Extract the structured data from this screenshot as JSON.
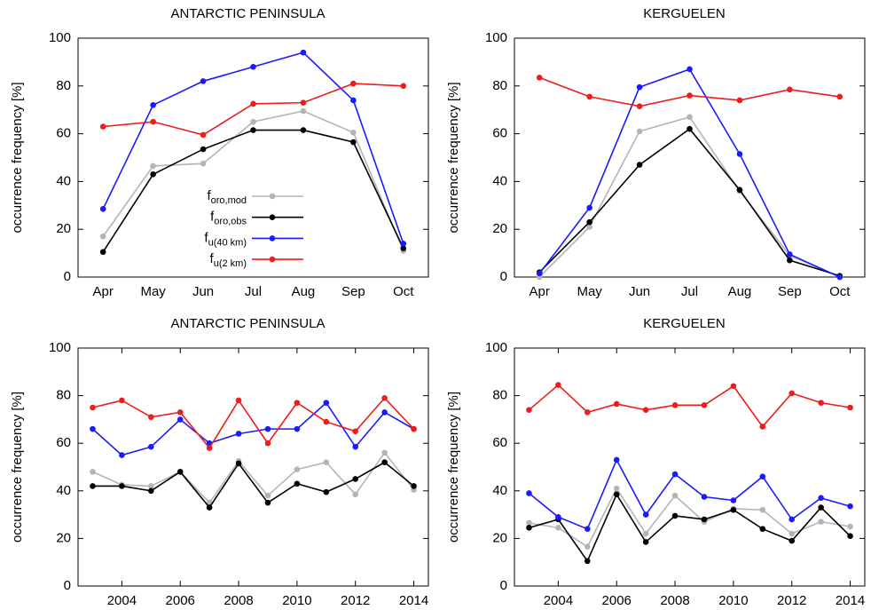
{
  "chart_data": [
    {
      "type": "line",
      "title": "ANTARCTIC PENINSULA",
      "ylabel": "occurrence frequency [%]",
      "categories": [
        "Apr",
        "May",
        "Jun",
        "Jul",
        "Aug",
        "Sep",
        "Oct"
      ],
      "ylim": [
        0,
        100
      ],
      "yticks": [
        0,
        20,
        40,
        60,
        80,
        100
      ],
      "legend": "center",
      "series": [
        {
          "name": "f",
          "subscript": "oro,mod",
          "color": "#b4b4b4",
          "values": [
            17,
            46.5,
            47.5,
            65,
            69.5,
            60.5,
            11
          ]
        },
        {
          "name": "f",
          "subscript": "oro,obs",
          "color": "#000000",
          "values": [
            10.5,
            43,
            53.5,
            61.5,
            61.5,
            56.5,
            12
          ]
        },
        {
          "name": "f",
          "subscript": "u(40 km)",
          "color": "#1a1aff",
          "values": [
            28.5,
            72,
            82,
            88,
            94,
            74,
            14
          ]
        },
        {
          "name": "f",
          "subscript": "u(2 km)",
          "color": "#ee1c1c",
          "values": [
            63,
            65,
            59.5,
            72.5,
            73,
            81,
            80
          ]
        }
      ]
    },
    {
      "type": "line",
      "title": "KERGUELEN",
      "ylabel": "occurrence frequency [%]",
      "categories": [
        "Apr",
        "May",
        "Jun",
        "Jul",
        "Aug",
        "Sep",
        "Oct"
      ],
      "ylim": [
        0,
        100
      ],
      "yticks": [
        0,
        20,
        40,
        60,
        80,
        100
      ],
      "series": [
        {
          "color": "#b4b4b4",
          "values": [
            0,
            21,
            61,
            67,
            36,
            9,
            0
          ]
        },
        {
          "color": "#000000",
          "values": [
            2,
            23,
            47,
            62,
            36.5,
            7,
            0.5
          ]
        },
        {
          "color": "#1a1aff",
          "values": [
            1.5,
            29,
            79.5,
            87,
            51.5,
            9.5,
            0
          ]
        },
        {
          "color": "#ee1c1c",
          "values": [
            83.5,
            75.5,
            71.5,
            76,
            74,
            78.5,
            75.5
          ]
        }
      ]
    },
    {
      "type": "line",
      "title": "ANTARCTIC PENINSULA",
      "ylabel": "occurrence frequency [%]",
      "x": [
        2003,
        2004,
        2005,
        2006,
        2007,
        2008,
        2009,
        2010,
        2011,
        2012,
        2013,
        2014
      ],
      "xlim": [
        2002.5,
        2014.5
      ],
      "xticks": [
        2004,
        2006,
        2008,
        2010,
        2012,
        2014
      ],
      "ylim": [
        0,
        100
      ],
      "yticks": [
        0,
        20,
        40,
        60,
        80,
        100
      ],
      "series": [
        {
          "color": "#b4b4b4",
          "values": [
            48,
            42.5,
            42,
            48,
            35,
            52.5,
            38,
            49,
            52,
            38.5,
            56,
            40.5
          ]
        },
        {
          "color": "#000000",
          "values": [
            42,
            42,
            40,
            48,
            33,
            51.5,
            35,
            43,
            39.5,
            45,
            52,
            42
          ]
        },
        {
          "color": "#1a1aff",
          "values": [
            66,
            55,
            58.5,
            70,
            60,
            64,
            66,
            66,
            77,
            58.5,
            73,
            66
          ]
        },
        {
          "color": "#ee1c1c",
          "values": [
            75,
            78,
            71,
            73,
            58,
            78,
            60,
            77,
            69,
            65,
            79,
            66
          ]
        }
      ]
    },
    {
      "type": "line",
      "title": "KERGUELEN",
      "ylabel": "occurrence frequency [%]",
      "x": [
        2003,
        2004,
        2005,
        2006,
        2007,
        2008,
        2009,
        2010,
        2011,
        2012,
        2013,
        2014
      ],
      "xlim": [
        2002.5,
        2014.5
      ],
      "xticks": [
        2004,
        2006,
        2008,
        2010,
        2012,
        2014
      ],
      "ylim": [
        0,
        100
      ],
      "yticks": [
        0,
        20,
        40,
        60,
        80,
        100
      ],
      "series": [
        {
          "color": "#b4b4b4",
          "values": [
            26.5,
            24.5,
            16.5,
            41,
            22,
            38,
            27,
            32.5,
            32,
            22,
            27,
            25
          ]
        },
        {
          "color": "#000000",
          "values": [
            24.5,
            28,
            10.5,
            38.5,
            18.5,
            29.5,
            28,
            32,
            24,
            19,
            33,
            21
          ]
        },
        {
          "color": "#1a1aff",
          "values": [
            39,
            29,
            24,
            53,
            30,
            47,
            37.5,
            36,
            46,
            28,
            37,
            33.5
          ]
        },
        {
          "color": "#ee1c1c",
          "values": [
            74,
            84.5,
            73,
            76.5,
            74,
            76,
            76,
            84,
            67,
            81,
            77,
            75
          ]
        }
      ]
    }
  ]
}
